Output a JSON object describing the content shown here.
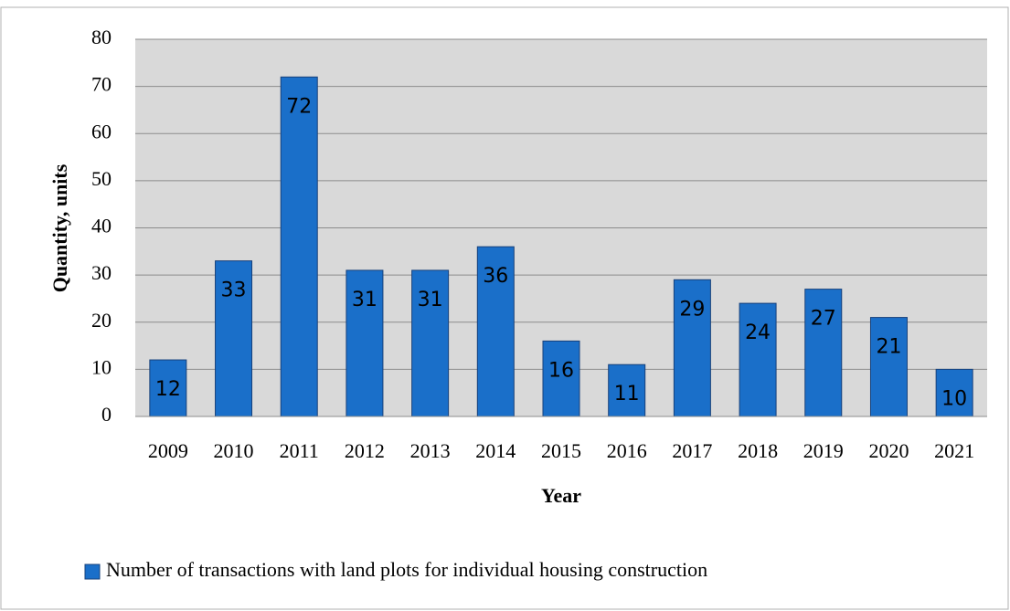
{
  "chart_data": {
    "type": "bar",
    "categories": [
      "2009",
      "2010",
      "2011",
      "2012",
      "2013",
      "2014",
      "2015",
      "2016",
      "2017",
      "2018",
      "2019",
      "2020",
      "2021"
    ],
    "series": [
      {
        "name": "Number of transactions with land plots for individual housing construction",
        "color": "#1a6fc9",
        "values": [
          12,
          33,
          72,
          31,
          31,
          36,
          16,
          11,
          29,
          24,
          27,
          21,
          10
        ]
      }
    ],
    "x_label": "Year",
    "y_label": "Quantity, units",
    "ylim": [
      0,
      80
    ],
    "yticks": [
      0,
      10,
      20,
      30,
      40,
      50,
      60,
      70,
      80
    ],
    "grid": true,
    "legend": "bottom"
  }
}
